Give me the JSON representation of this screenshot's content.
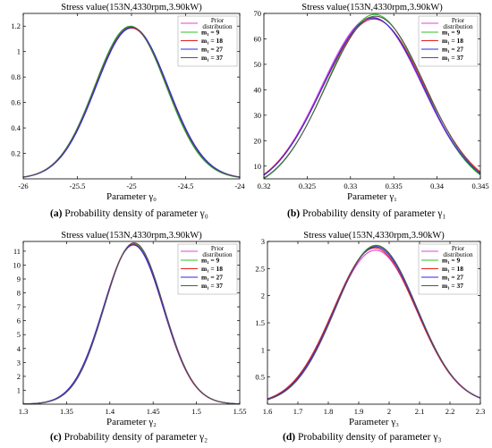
{
  "legend_entries": [
    "Prior distribution",
    "m₁ = 9",
    "m₁ = 18",
    "m₁ = 27",
    "m₁ = 37"
  ],
  "legend_colors": [
    "#e040e0",
    "#2fbf2f",
    "#e02020",
    "#2a2ae0",
    "#555555"
  ],
  "chart_data": [
    {
      "type": "line",
      "title": "Stress value(153N,4330rpm,3.90kW)",
      "xlabel": "Parameter γ₀",
      "ylabel": "",
      "xlim": [
        -26,
        -24
      ],
      "ylim": [
        0,
        1.3
      ],
      "xticks": [
        -26,
        -25.5,
        -25,
        -24.5,
        -24
      ],
      "xtick_labels": [
        "-26",
        "-25.5",
        "-25",
        "-24.5",
        "-24"
      ],
      "yticks": [
        0.2,
        0.4,
        0.6,
        0.8,
        1,
        1.2
      ],
      "ytick_labels": [
        "0.2",
        "0.4",
        "0.6",
        "0.8",
        "1",
        "1.2"
      ],
      "legend_position": "top-right",
      "series": [
        {
          "name": "Prior distribution",
          "mean": -25.0,
          "sd": 0.335,
          "peak": 1.19
        },
        {
          "name": "m₁ = 9",
          "mean": -25.01,
          "sd": 0.331,
          "peak": 1.2
        },
        {
          "name": "m₁ = 18",
          "mean": -25.0,
          "sd": 0.336,
          "peak": 1.185
        },
        {
          "name": "m₁ = 27",
          "mean": -24.995,
          "sd": 0.334,
          "peak": 1.19
        },
        {
          "name": "m₁ = 37",
          "mean": -25.005,
          "sd": 0.333,
          "peak": 1.195
        }
      ],
      "caption_label": "(a)",
      "caption_text": " Probability density of parameter  γ₀"
    },
    {
      "type": "line",
      "title": "Stress value(153N,4330rpm,3.90kW)",
      "xlabel": "Parameter γ₁",
      "ylabel": "",
      "xlim": [
        0.32,
        0.345
      ],
      "ylim": [
        5,
        70
      ],
      "xticks": [
        0.32,
        0.325,
        0.33,
        0.335,
        0.34,
        0.345
      ],
      "xtick_labels": [
        "0.32",
        "0.325",
        "0.33",
        "0.335",
        "0.34",
        "0.345"
      ],
      "yticks": [
        10,
        20,
        30,
        40,
        50,
        60,
        70
      ],
      "ytick_labels": [
        "10",
        "20",
        "30",
        "40",
        "50",
        "60",
        "70"
      ],
      "legend_position": "top-right",
      "series": [
        {
          "name": "Prior distribution",
          "mean": 0.3325,
          "sd": 0.0058,
          "peak": 68.5
        },
        {
          "name": "m₁ = 9",
          "mean": 0.3328,
          "sd": 0.0056,
          "peak": 69.6
        },
        {
          "name": "m₁ = 18",
          "mean": 0.3327,
          "sd": 0.0059,
          "peak": 67.8
        },
        {
          "name": "m₁ = 27",
          "mean": 0.3326,
          "sd": 0.0058,
          "peak": 68.2
        },
        {
          "name": "m₁ = 37",
          "mean": 0.3329,
          "sd": 0.0057,
          "peak": 68.9
        }
      ],
      "caption_label": "(b)",
      "caption_text": " Probability density of parameter  γ₁"
    },
    {
      "type": "line",
      "title": "Stress value(153N,4330rpm,3.90kW)",
      "xlabel": "Parameter γ₂",
      "ylabel": "",
      "xlim": [
        1.3,
        1.55
      ],
      "ylim": [
        0,
        11.7
      ],
      "xticks": [
        1.3,
        1.35,
        1.4,
        1.45,
        1.5,
        1.55
      ],
      "xtick_labels": [
        "1.3",
        "1.35",
        "1.4",
        "1.45",
        "1.5",
        "1.55"
      ],
      "yticks": [
        1,
        2,
        3,
        4,
        5,
        6,
        7,
        8,
        9,
        10,
        11
      ],
      "ytick_labels": [
        "1",
        "2",
        "3",
        "4",
        "5",
        "6",
        "7",
        "8",
        "9",
        "10",
        "11"
      ],
      "legend_position": "top-right",
      "series": [
        {
          "name": "Prior distribution",
          "mean": 1.427,
          "sd": 0.0345,
          "peak": 11.45
        },
        {
          "name": "m₁ = 9",
          "mean": 1.4275,
          "sd": 0.0343,
          "peak": 11.55
        },
        {
          "name": "m₁ = 18",
          "mean": 1.427,
          "sd": 0.0344,
          "peak": 11.5
        },
        {
          "name": "m₁ = 27",
          "mean": 1.4272,
          "sd": 0.0346,
          "peak": 11.45
        },
        {
          "name": "m₁ = 37",
          "mean": 1.428,
          "sd": 0.0342,
          "peak": 11.6
        }
      ],
      "caption_label": "(c)",
      "caption_text": " Probability density of parameter  γ₂"
    },
    {
      "type": "line",
      "title": "Stress value(153N,4330rpm,3.90kW)",
      "xlabel": "Parameter γ₃",
      "ylabel": "",
      "xlim": [
        1.6,
        2.3
      ],
      "ylim": [
        0,
        3
      ],
      "xticks": [
        1.6,
        1.7,
        1.8,
        1.9,
        2.0,
        2.1,
        2.2,
        2.3
      ],
      "xtick_labels": [
        "1.6",
        "1.7",
        "1.8",
        "1.9",
        "2",
        "2.1",
        "2.2",
        "2.3"
      ],
      "yticks": [
        0.5,
        1,
        1.5,
        2,
        2.5,
        3
      ],
      "ytick_labels": [
        "0.5",
        "1",
        "1.5",
        "2",
        "2.5",
        "3"
      ],
      "legend_position": "top-right",
      "series": [
        {
          "name": "Prior distribution",
          "mean": 1.955,
          "sd": 0.137,
          "peak": 2.84
        },
        {
          "name": "m₁ = 9",
          "mean": 1.957,
          "sd": 0.134,
          "peak": 2.93
        },
        {
          "name": "m₁ = 18",
          "mean": 1.953,
          "sd": 0.136,
          "peak": 2.88
        },
        {
          "name": "m₁ = 27",
          "mean": 1.956,
          "sd": 0.135,
          "peak": 2.9
        },
        {
          "name": "m₁ = 37",
          "mean": 1.958,
          "sd": 0.134,
          "peak": 2.92
        }
      ],
      "caption_label": "(d)",
      "caption_text": " Probability density of parameter  γ₃"
    }
  ]
}
